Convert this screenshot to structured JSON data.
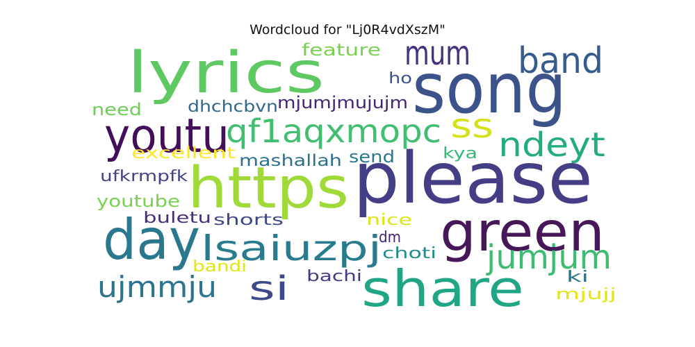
{
  "title": "Wordcloud for \"Lj0R4vdXszM\"",
  "words": [
    {
      "text": "song",
      "color": "#3b528b"
    },
    {
      "text": "please",
      "color": "#433e85"
    },
    {
      "text": "lyrics",
      "color": "#5ec962"
    },
    {
      "text": "https",
      "color": "#a0da39"
    },
    {
      "text": "day",
      "color": "#2a788e"
    },
    {
      "text": "share",
      "color": "#21a685"
    },
    {
      "text": "green",
      "color": "#46185a"
    },
    {
      "text": "youtu",
      "color": "#440f5a"
    },
    {
      "text": "qf1aqxmopc",
      "color": "#42be71"
    },
    {
      "text": "lsaiuzpj",
      "color": "#287c8e"
    },
    {
      "text": "band",
      "color": "#365c8d"
    },
    {
      "text": "mum",
      "color": "#46327e"
    },
    {
      "text": "ss",
      "color": "#d4e21a"
    },
    {
      "text": "ndeyt",
      "color": "#25ab82"
    },
    {
      "text": "jumjum",
      "color": "#3fbc73"
    },
    {
      "text": "ujmmju",
      "color": "#2c738e"
    },
    {
      "text": "si",
      "color": "#3e4989"
    },
    {
      "text": "feature",
      "color": "#7ad151"
    },
    {
      "text": "ho",
      "color": "#3b528b"
    },
    {
      "text": "mjumjmujujm",
      "color": "#482475"
    },
    {
      "text": "dhchcbvn",
      "color": "#31688e"
    },
    {
      "text": "need",
      "color": "#6ece58"
    },
    {
      "text": "excellent",
      "color": "#fde725"
    },
    {
      "text": "mashallah",
      "color": "#2d708e"
    },
    {
      "text": "send",
      "color": "#2a788e"
    },
    {
      "text": "kya",
      "color": "#35b779"
    },
    {
      "text": "ufkrmpfk",
      "color": "#414487"
    },
    {
      "text": "youtube",
      "color": "#7ad151"
    },
    {
      "text": "buletu",
      "color": "#472d7b"
    },
    {
      "text": "shorts",
      "color": "#3e4989"
    },
    {
      "text": "nice",
      "color": "#dde318"
    },
    {
      "text": "dm",
      "color": "#482475"
    },
    {
      "text": "choti",
      "color": "#238a8d"
    },
    {
      "text": "bandi",
      "color": "#e2e418"
    },
    {
      "text": "bachi",
      "color": "#443983"
    },
    {
      "text": "ki",
      "color": "#2c738e"
    },
    {
      "text": "mjujj",
      "color": "#e5e419"
    }
  ]
}
